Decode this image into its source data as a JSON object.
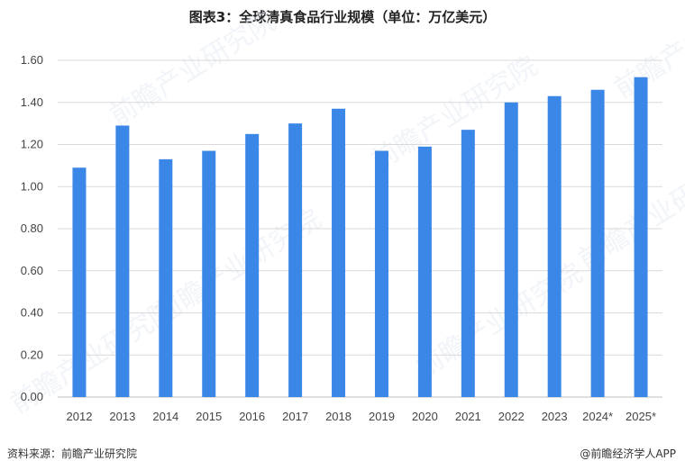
{
  "chart_data": {
    "type": "bar",
    "title": "图表3：全球清真食品行业规模（单位：万亿美元）",
    "categories": [
      "2012",
      "2013",
      "2014",
      "2015",
      "2016",
      "2017",
      "2018",
      "2019",
      "2020",
      "2021",
      "2022",
      "2023",
      "2024*",
      "2025*"
    ],
    "series": [
      {
        "values": [
          1.09,
          1.29,
          1.13,
          1.17,
          1.25,
          1.3,
          1.37,
          1.17,
          1.19,
          1.27,
          1.4,
          1.43,
          1.46,
          1.52
        ]
      }
    ],
    "ylim": [
      0,
      1.6
    ],
    "yticks": [
      "0.00",
      "0.20",
      "0.40",
      "0.60",
      "0.80",
      "1.00",
      "1.20",
      "1.40",
      "1.60"
    ],
    "grid": true,
    "bar_color": "#3b87e8",
    "grid_color": "#d9d9d9"
  },
  "footer": {
    "source": "资料来源：前瞻产业研究院",
    "brand": "@前瞻经济学人APP"
  },
  "watermark": "前瞻产业研究院"
}
